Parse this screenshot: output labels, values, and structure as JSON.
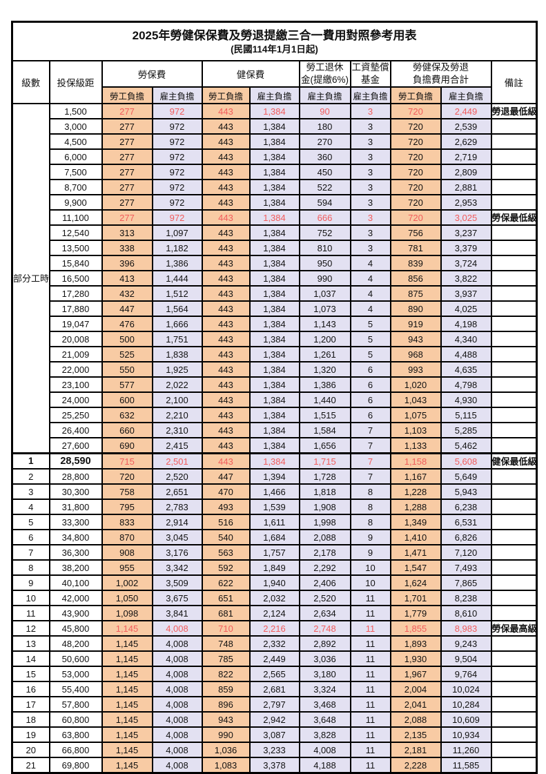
{
  "title": "2025年勞健保保費及勞退提繳三合一費用對照參考用表",
  "subtitle": "(民國114年1月1日起)",
  "colors": {
    "employee_column_bg": "#f8cba4",
    "employer_column_bg": "#e3e1f2",
    "highlight_text": "#f25c5c",
    "border": "#000000"
  },
  "header": {
    "level": "級數",
    "bracket": "投保級距",
    "labor_insurance": "勞保費",
    "health_insurance": "健保費",
    "pension_line1": "勞工退休",
    "pension_line2": "金(提繳6%)",
    "wage_fund_line1": "工資墊償",
    "wage_fund_line2": "基金",
    "total_line1": "勞健保及勞退",
    "total_line2": "負擔費用合計",
    "note": "備註",
    "employee_label": "勞工負擔",
    "employer_label": "雇主負擔"
  },
  "part_time_label": "部分工時",
  "table": {
    "columns": [
      "level",
      "bracket",
      "labor-employee",
      "labor-employer",
      "health-employee",
      "health-employer",
      "pension-employer",
      "wage-fund-employer",
      "total-employee",
      "total-employer",
      "note"
    ],
    "rows": [
      [
        "",
        "1,500",
        "277",
        "972",
        "443",
        "1,384",
        "90",
        "3",
        "720",
        "2,449",
        "勞退最低級距",
        true
      ],
      [
        "",
        "3,000",
        "277",
        "972",
        "443",
        "1,384",
        "180",
        "3",
        "720",
        "2,539",
        "",
        false
      ],
      [
        "",
        "4,500",
        "277",
        "972",
        "443",
        "1,384",
        "270",
        "3",
        "720",
        "2,629",
        "",
        false
      ],
      [
        "",
        "6,000",
        "277",
        "972",
        "443",
        "1,384",
        "360",
        "3",
        "720",
        "2,719",
        "",
        false
      ],
      [
        "",
        "7,500",
        "277",
        "972",
        "443",
        "1,384",
        "450",
        "3",
        "720",
        "2,809",
        "",
        false
      ],
      [
        "",
        "8,700",
        "277",
        "972",
        "443",
        "1,384",
        "522",
        "3",
        "720",
        "2,881",
        "",
        false
      ],
      [
        "",
        "9,900",
        "277",
        "972",
        "443",
        "1,384",
        "594",
        "3",
        "720",
        "2,953",
        "",
        false
      ],
      [
        "",
        "11,100",
        "277",
        "972",
        "443",
        "1,384",
        "666",
        "3",
        "720",
        "3,025",
        "勞保最低級距",
        true
      ],
      [
        "",
        "12,540",
        "313",
        "1,097",
        "443",
        "1,384",
        "752",
        "3",
        "756",
        "3,237",
        "",
        false
      ],
      [
        "",
        "13,500",
        "338",
        "1,182",
        "443",
        "1,384",
        "810",
        "3",
        "781",
        "3,379",
        "",
        false
      ],
      [
        "",
        "15,840",
        "396",
        "1,386",
        "443",
        "1,384",
        "950",
        "4",
        "839",
        "3,724",
        "",
        false
      ],
      [
        "",
        "16,500",
        "413",
        "1,444",
        "443",
        "1,384",
        "990",
        "4",
        "856",
        "3,822",
        "",
        false
      ],
      [
        "",
        "17,280",
        "432",
        "1,512",
        "443",
        "1,384",
        "1,037",
        "4",
        "875",
        "3,937",
        "",
        false
      ],
      [
        "",
        "17,880",
        "447",
        "1,564",
        "443",
        "1,384",
        "1,073",
        "4",
        "890",
        "4,025",
        "",
        false
      ],
      [
        "",
        "19,047",
        "476",
        "1,666",
        "443",
        "1,384",
        "1,143",
        "5",
        "919",
        "4,198",
        "",
        false
      ],
      [
        "",
        "20,008",
        "500",
        "1,751",
        "443",
        "1,384",
        "1,200",
        "5",
        "943",
        "4,340",
        "",
        false
      ],
      [
        "",
        "21,009",
        "525",
        "1,838",
        "443",
        "1,384",
        "1,261",
        "5",
        "968",
        "4,488",
        "",
        false
      ],
      [
        "",
        "22,000",
        "550",
        "1,925",
        "443",
        "1,384",
        "1,320",
        "6",
        "993",
        "4,635",
        "",
        false
      ],
      [
        "",
        "23,100",
        "577",
        "2,022",
        "443",
        "1,384",
        "1,386",
        "6",
        "1,020",
        "4,798",
        "",
        false
      ],
      [
        "",
        "24,000",
        "600",
        "2,100",
        "443",
        "1,384",
        "1,440",
        "6",
        "1,043",
        "4,930",
        "",
        false
      ],
      [
        "",
        "25,250",
        "632",
        "2,210",
        "443",
        "1,384",
        "1,515",
        "6",
        "1,075",
        "5,115",
        "",
        false
      ],
      [
        "",
        "26,400",
        "660",
        "2,310",
        "443",
        "1,384",
        "1,584",
        "7",
        "1,103",
        "5,285",
        "",
        false
      ],
      [
        "",
        "27,600",
        "690",
        "2,415",
        "443",
        "1,384",
        "1,656",
        "7",
        "1,133",
        "5,462",
        "",
        false
      ],
      [
        "1",
        "28,590",
        "715",
        "2,501",
        "443",
        "1,384",
        "1,715",
        "7",
        "1,158",
        "5,608",
        "健保最低級距",
        true
      ],
      [
        "2",
        "28,800",
        "720",
        "2,520",
        "447",
        "1,394",
        "1,728",
        "7",
        "1,167",
        "5,649",
        "",
        false
      ],
      [
        "3",
        "30,300",
        "758",
        "2,651",
        "470",
        "1,466",
        "1,818",
        "8",
        "1,228",
        "5,943",
        "",
        false
      ],
      [
        "4",
        "31,800",
        "795",
        "2,783",
        "493",
        "1,539",
        "1,908",
        "8",
        "1,288",
        "6,238",
        "",
        false
      ],
      [
        "5",
        "33,300",
        "833",
        "2,914",
        "516",
        "1,611",
        "1,998",
        "8",
        "1,349",
        "6,531",
        "",
        false
      ],
      [
        "6",
        "34,800",
        "870",
        "3,045",
        "540",
        "1,684",
        "2,088",
        "9",
        "1,410",
        "6,826",
        "",
        false
      ],
      [
        "7",
        "36,300",
        "908",
        "3,176",
        "563",
        "1,757",
        "2,178",
        "9",
        "1,471",
        "7,120",
        "",
        false
      ],
      [
        "8",
        "38,200",
        "955",
        "3,342",
        "592",
        "1,849",
        "2,292",
        "10",
        "1,547",
        "7,493",
        "",
        false
      ],
      [
        "9",
        "40,100",
        "1,002",
        "3,509",
        "622",
        "1,940",
        "2,406",
        "10",
        "1,624",
        "7,865",
        "",
        false
      ],
      [
        "10",
        "42,000",
        "1,050",
        "3,675",
        "651",
        "2,032",
        "2,520",
        "11",
        "1,701",
        "8,238",
        "",
        false
      ],
      [
        "11",
        "43,900",
        "1,098",
        "3,841",
        "681",
        "2,124",
        "2,634",
        "11",
        "1,779",
        "8,610",
        "",
        false
      ],
      [
        "12",
        "45,800",
        "1,145",
        "4,008",
        "710",
        "2,216",
        "2,748",
        "11",
        "1,855",
        "8,983",
        "勞保最高級距",
        true
      ],
      [
        "13",
        "48,200",
        "1,145",
        "4,008",
        "748",
        "2,332",
        "2,892",
        "11",
        "1,893",
        "9,243",
        "",
        false
      ],
      [
        "14",
        "50,600",
        "1,145",
        "4,008",
        "785",
        "2,449",
        "3,036",
        "11",
        "1,930",
        "9,504",
        "",
        false
      ],
      [
        "15",
        "53,000",
        "1,145",
        "4,008",
        "822",
        "2,565",
        "3,180",
        "11",
        "1,967",
        "9,764",
        "",
        false
      ],
      [
        "16",
        "55,400",
        "1,145",
        "4,008",
        "859",
        "2,681",
        "3,324",
        "11",
        "2,004",
        "10,024",
        "",
        false
      ],
      [
        "17",
        "57,800",
        "1,145",
        "4,008",
        "896",
        "2,797",
        "3,468",
        "11",
        "2,041",
        "10,284",
        "",
        false
      ],
      [
        "18",
        "60,800",
        "1,145",
        "4,008",
        "943",
        "2,942",
        "3,648",
        "11",
        "2,088",
        "10,609",
        "",
        false
      ],
      [
        "19",
        "63,800",
        "1,145",
        "4,008",
        "990",
        "3,087",
        "3,828",
        "11",
        "2,135",
        "10,934",
        "",
        false
      ],
      [
        "20",
        "66,800",
        "1,145",
        "4,008",
        "1,036",
        "3,233",
        "4,008",
        "11",
        "2,181",
        "11,260",
        "",
        false
      ],
      [
        "21",
        "69,800",
        "1,145",
        "4,008",
        "1,083",
        "3,378",
        "4,188",
        "11",
        "2,228",
        "11,585",
        "",
        false
      ]
    ]
  }
}
